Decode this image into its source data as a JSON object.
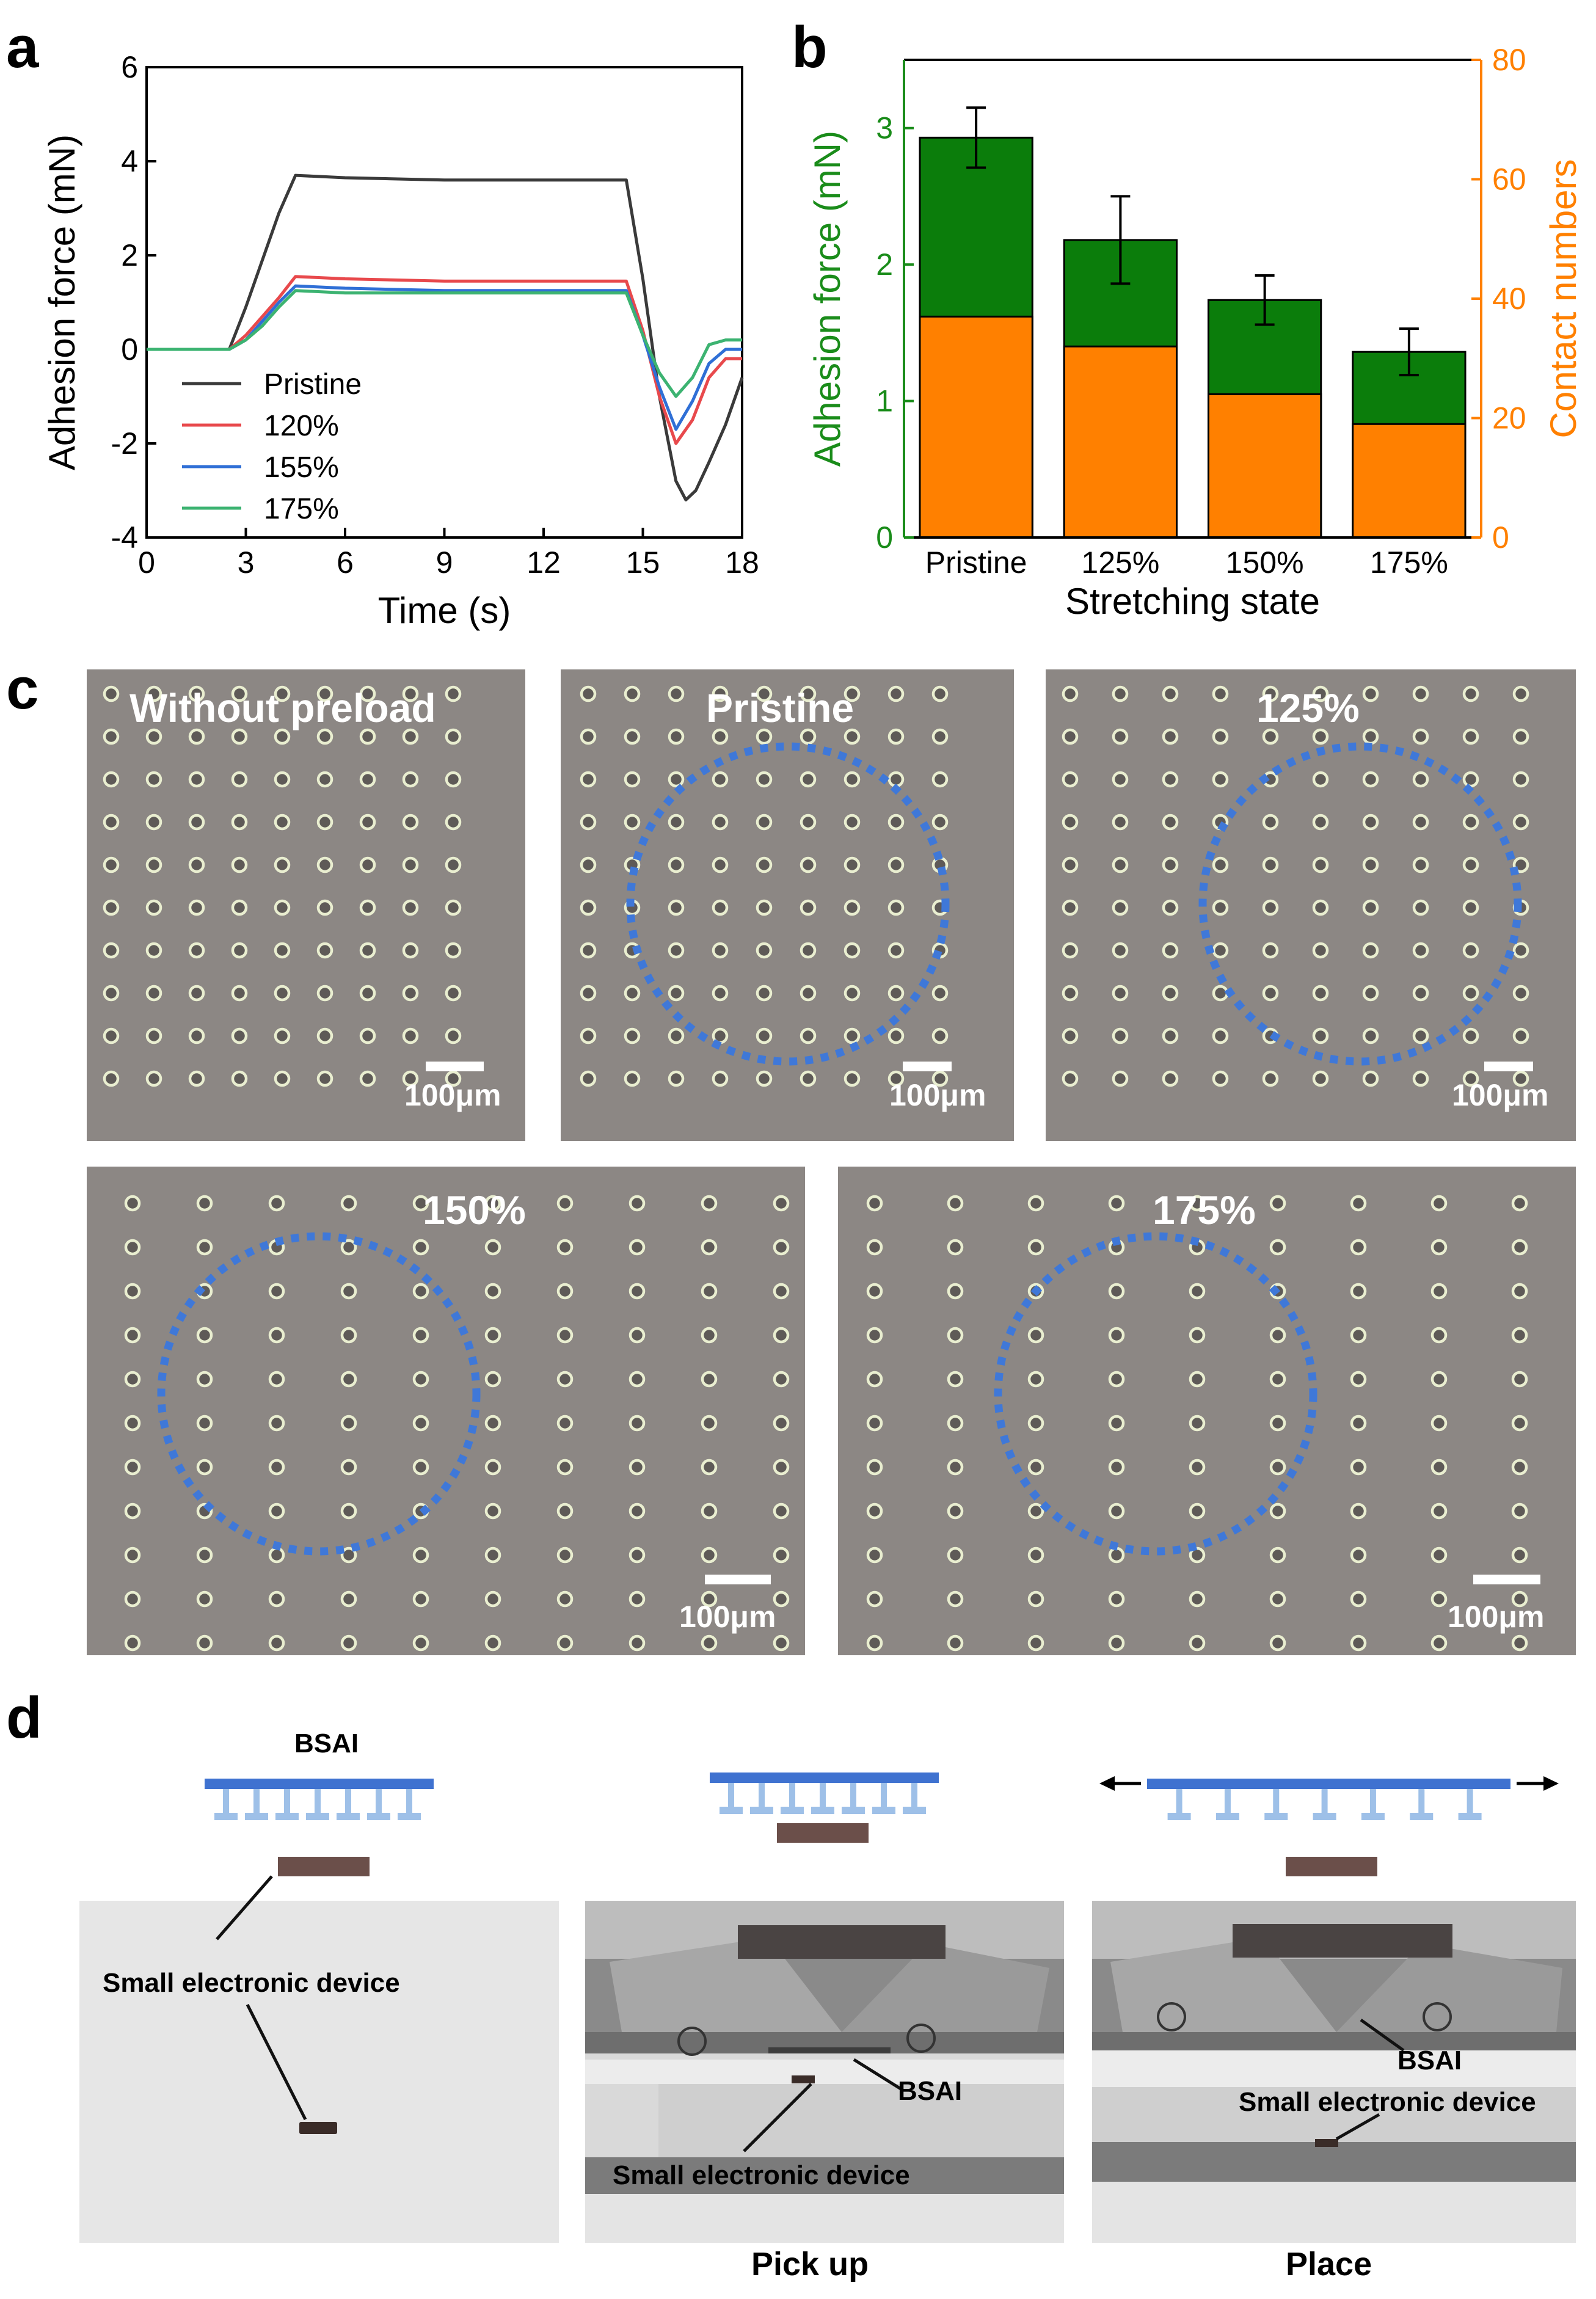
{
  "panels": {
    "a": "a",
    "b": "b",
    "c": "c",
    "d": "d"
  },
  "colors": {
    "pristine": "#3a3a3a",
    "s120": "#e8494c",
    "s155": "#2f6fd6",
    "s175": "#3cb371",
    "adhesion_bar": "#0b7d0b",
    "contact_bar": "#ff8000",
    "left_axis": "#1a8c1a",
    "right_axis": "#ff8000",
    "dotted_circle": "#3f78d8",
    "micro_bg": "#8c8784",
    "bsai_top": "#3f72d0",
    "bsai_pillars": "#9ec0e8",
    "device": "#6b4f4a"
  },
  "chart_data": [
    {
      "panel": "a",
      "type": "line",
      "xlabel": "Time (s)",
      "ylabel": "Adhesion force (mN)",
      "xlim": [
        0,
        18
      ],
      "ylim": [
        -4,
        6
      ],
      "xticks": [
        0,
        3,
        6,
        9,
        12,
        15,
        18
      ],
      "yticks": [
        -4,
        -2,
        0,
        2,
        4,
        6
      ],
      "legend_position": "bottom-left",
      "series": [
        {
          "name": "Pristine",
          "x": [
            0,
            2.5,
            3.0,
            3.5,
            4.0,
            4.5,
            6,
            9,
            12,
            14.5,
            15.0,
            15.5,
            16.0,
            16.3,
            16.6,
            17.0,
            17.5,
            18
          ],
          "y": [
            0,
            0,
            0.9,
            1.9,
            2.9,
            3.7,
            3.65,
            3.6,
            3.6,
            3.6,
            1.5,
            -1.0,
            -2.8,
            -3.2,
            -3.0,
            -2.4,
            -1.6,
            -0.6
          ]
        },
        {
          "name": "120%",
          "x": [
            0,
            2.5,
            3.0,
            3.5,
            4.0,
            4.5,
            6,
            9,
            12,
            14.5,
            15.0,
            15.5,
            16.0,
            16.5,
            17.0,
            17.5,
            18
          ],
          "y": [
            0,
            0,
            0.3,
            0.7,
            1.1,
            1.55,
            1.5,
            1.45,
            1.45,
            1.45,
            0.4,
            -1.0,
            -2.0,
            -1.5,
            -0.6,
            -0.2,
            -0.2
          ]
        },
        {
          "name": "155%",
          "x": [
            0,
            2.5,
            3.0,
            3.5,
            4.0,
            4.5,
            6,
            9,
            12,
            14.5,
            15.0,
            15.5,
            16.0,
            16.5,
            17.0,
            17.5,
            18
          ],
          "y": [
            0,
            0,
            0.2,
            0.6,
            1.0,
            1.35,
            1.3,
            1.25,
            1.25,
            1.25,
            0.3,
            -0.8,
            -1.7,
            -1.1,
            -0.3,
            0.0,
            0.0
          ]
        },
        {
          "name": "175%",
          "x": [
            0,
            2.5,
            3.0,
            3.5,
            4.0,
            4.5,
            6,
            9,
            12,
            14.5,
            15.0,
            15.5,
            16.0,
            16.5,
            17.0,
            17.5,
            18
          ],
          "y": [
            0,
            0,
            0.2,
            0.5,
            0.9,
            1.25,
            1.2,
            1.2,
            1.2,
            1.2,
            0.3,
            -0.5,
            -1.0,
            -0.6,
            0.1,
            0.2,
            0.2
          ]
        }
      ]
    },
    {
      "panel": "b",
      "type": "bar",
      "xlabel": "Stretching state",
      "ylabel": "Adhesion force (mN)",
      "ylabel_right": "Contact numbers",
      "categories": [
        "Pristine",
        "125%",
        "150%",
        "175%"
      ],
      "ylim": [
        0,
        3.5
      ],
      "ylim_right": [
        0,
        80
      ],
      "yticks": [
        0,
        1,
        2,
        3
      ],
      "yticks_right": [
        0,
        20,
        40,
        60,
        80
      ],
      "series": [
        {
          "name": "Adhesion force (mN)",
          "axis": "left",
          "values": [
            2.93,
            2.18,
            1.74,
            1.36
          ],
          "errors": [
            0.22,
            0.32,
            0.18,
            0.17
          ]
        },
        {
          "name": "Contact numbers",
          "axis": "right",
          "values": [
            37,
            32,
            24,
            19
          ]
        }
      ]
    }
  ],
  "panel_c": {
    "images": [
      {
        "label": "Without preload",
        "scale": "100μm"
      },
      {
        "label": "Pristine",
        "scale": "100μm"
      },
      {
        "label": "125%",
        "scale": "100μm"
      },
      {
        "label": "150%",
        "scale": "100μm"
      },
      {
        "label": "175%",
        "scale": "100μm"
      }
    ]
  },
  "panel_d": {
    "bsai_label": "BSAI",
    "device_label": "Small electronic device",
    "photo2_bsai": "BSAI",
    "photo2_device": "Small electronic device",
    "photo3_bsai": "BSAI",
    "photo3_device": "Small electronic device",
    "caption_pickup": "Pick up",
    "caption_place": "Place"
  }
}
